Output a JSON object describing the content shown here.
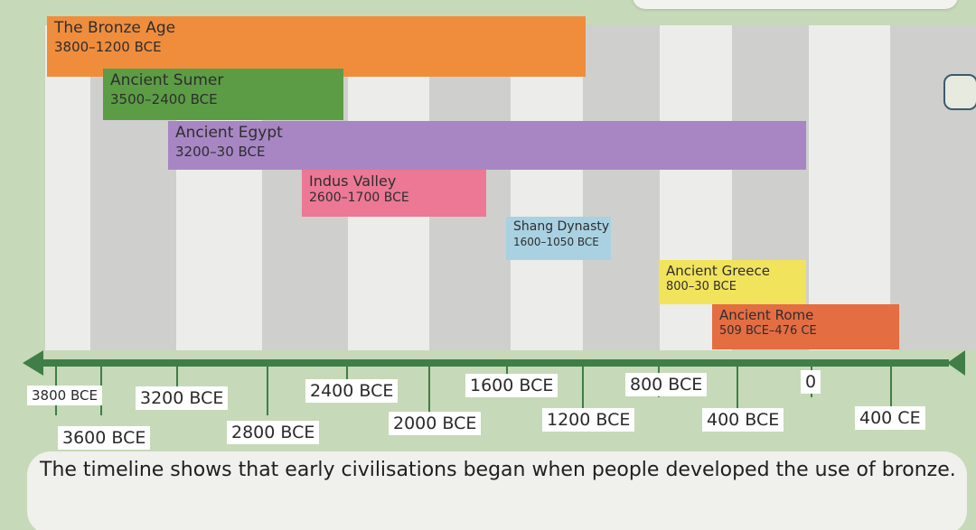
{
  "civilisations": [
    {
      "name": "The Bronze Age",
      "years": "3800–1200 BCE",
      "color": "#ef8d3d"
    },
    {
      "name": "Ancient Sumer",
      "years": "3500–2400 BCE",
      "color": "#5c9c45"
    },
    {
      "name": "Ancient Egypt",
      "years": "3200–30 BCE",
      "color": "#a886c4"
    },
    {
      "name": "Indus Valley",
      "years": "2600–1700 BCE",
      "color": "#ec7895"
    },
    {
      "name": "Shang Dynasty",
      "years": "1600–1050 BCE",
      "color": "#a9d1e2"
    },
    {
      "name": "Ancient Greece",
      "years": "800–30 BCE",
      "color": "#f2e35d"
    },
    {
      "name": "Ancient Rome",
      "years": "509 BCE–476 CE",
      "color": "#e46d42"
    }
  ],
  "axis_labels": [
    "3800 BCE",
    "3600 BCE",
    "3200 BCE",
    "2800 BCE",
    "2400 BCE",
    "2000 BCE",
    "1600 BCE",
    "1200 BCE",
    "800 BCE",
    "400 BCE",
    "0",
    "400 CE"
  ],
  "caption": "The timeline shows that early civilisations began when people developed the use of bronze.",
  "colors": {
    "axis": "#3f7e46",
    "background": "#c6d9b9"
  }
}
